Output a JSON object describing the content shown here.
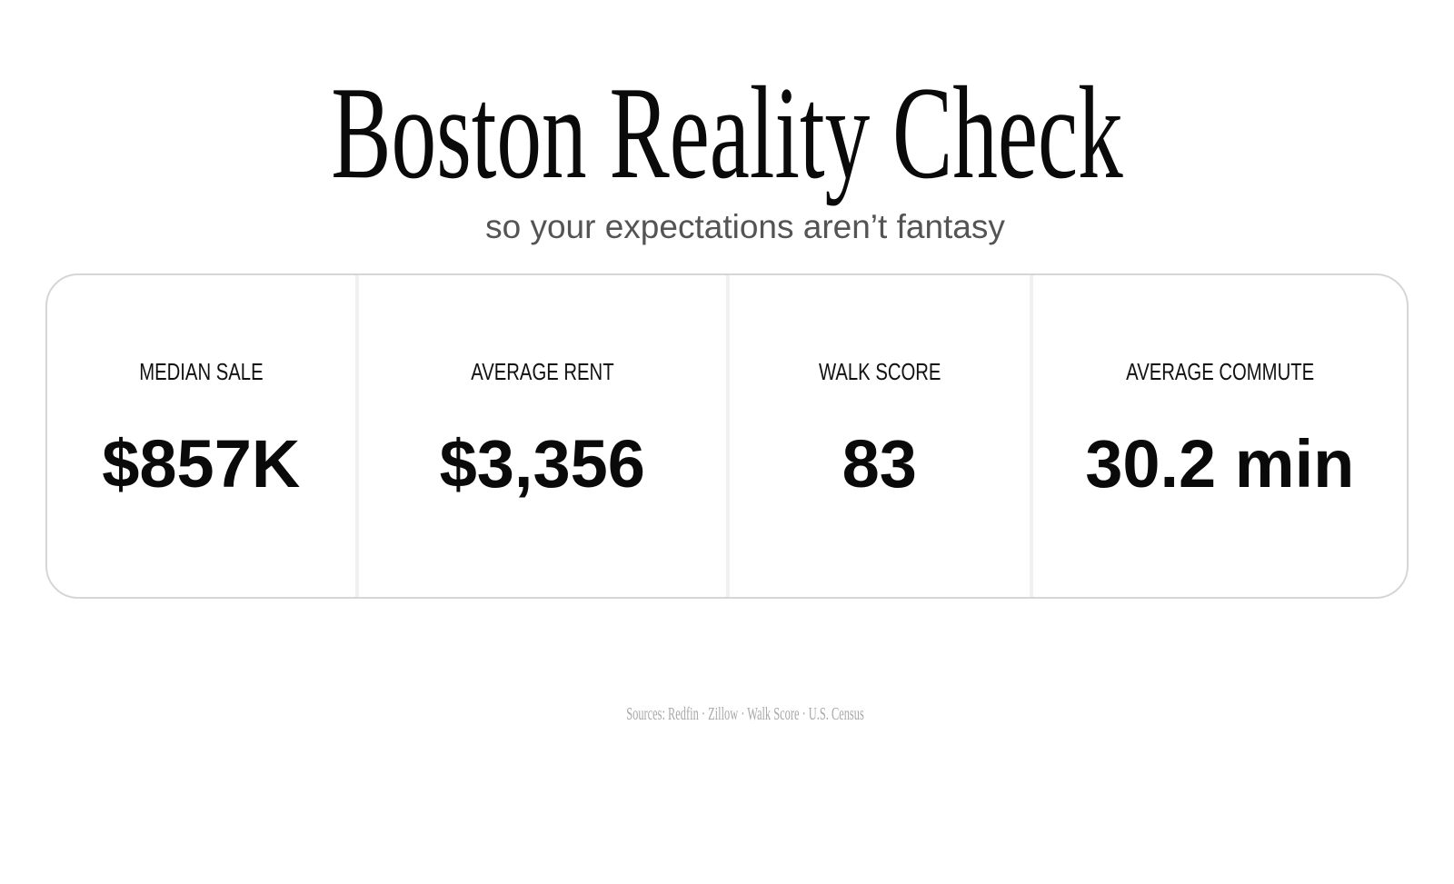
{
  "page": {
    "title": "Boston Reality Check",
    "subtitle": "so your expectations aren’t fantasy",
    "sources_line": "Sources: Redfin · Zillow · Walk Score · U.S. Census"
  },
  "stats": [
    {
      "label": "MEDIAN SALE",
      "value": "$857K"
    },
    {
      "label": "AVERAGE RENT",
      "value": "$3,356"
    },
    {
      "label": "WALK SCORE",
      "value": "83"
    },
    {
      "label": "AVERAGE COMMUTE",
      "value": "30.2 min"
    }
  ],
  "colors": {
    "background": "#ffffff",
    "text_primary": "#0a0a0a",
    "text_label": "#111111",
    "text_subtitle": "#545454",
    "text_sources": "#a8a8a8",
    "panel_border": "#d6d6d6",
    "divider": "#f1f1f1"
  },
  "chart_data": {
    "type": "table",
    "title": "Boston Reality Check",
    "subtitle": "so your expectations aren’t fantasy",
    "categories": [
      "MEDIAN SALE",
      "AVERAGE RENT",
      "WALK SCORE",
      "AVERAGE COMMUTE"
    ],
    "values": [
      "$857K",
      "$3,356",
      "83",
      "30.2 min"
    ],
    "numeric_values": [
      857000,
      3356,
      83,
      30.2
    ],
    "sources": [
      "Redfin",
      "Zillow",
      "Walk Score",
      "U.S. Census"
    ],
    "legend": false,
    "grid": false
  }
}
